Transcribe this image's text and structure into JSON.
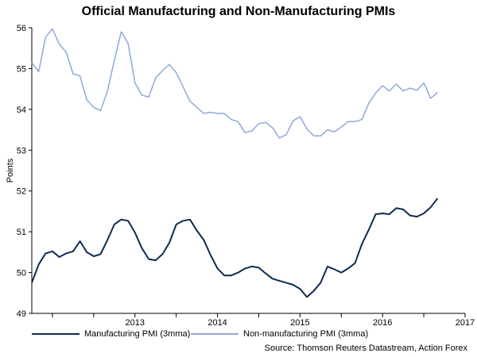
{
  "chart_data": {
    "type": "line",
    "title": "Official Manufacturing and Non-Manufacturing PMIs",
    "ylabel": "Points",
    "xlabel": "",
    "ylim": [
      49,
      56
    ],
    "yticks": [
      49,
      50,
      51,
      52,
      53,
      54,
      55,
      56
    ],
    "xlim": [
      "2012-04",
      "2017-07"
    ],
    "xticks": [
      {
        "label": "2013",
        "x": "2013-07"
      },
      {
        "label": "2014",
        "x": "2014-07"
      },
      {
        "label": "2015",
        "x": "2015-07"
      },
      {
        "label": "2016",
        "x": "2016-07"
      },
      {
        "label": "2017",
        "x": "2017-07"
      }
    ],
    "grid": false,
    "legend_position": "bottom",
    "series": [
      {
        "name": "Manufacturing PMI (3mma)",
        "color": "#0d2a52",
        "points": [
          [
            "2012-04",
            49.75
          ],
          [
            "2012-05",
            50.2
          ],
          [
            "2012-06",
            50.47
          ],
          [
            "2012-07",
            50.52
          ],
          [
            "2012-08",
            50.38
          ],
          [
            "2012-09",
            50.47
          ],
          [
            "2012-10",
            50.52
          ],
          [
            "2012-11",
            50.77
          ],
          [
            "2012-12",
            50.5
          ],
          [
            "2013-01",
            50.4
          ],
          [
            "2013-02",
            50.45
          ],
          [
            "2013-03",
            50.8
          ],
          [
            "2013-04",
            51.18
          ],
          [
            "2013-05",
            51.3
          ],
          [
            "2013-06",
            51.27
          ],
          [
            "2013-07",
            50.98
          ],
          [
            "2013-08",
            50.6
          ],
          [
            "2013-09",
            50.33
          ],
          [
            "2013-10",
            50.3
          ],
          [
            "2013-11",
            50.45
          ],
          [
            "2013-12",
            50.73
          ],
          [
            "2014-01",
            51.18
          ],
          [
            "2014-02",
            51.27
          ],
          [
            "2014-03",
            51.3
          ],
          [
            "2014-04",
            51.03
          ],
          [
            "2014-05",
            50.8
          ],
          [
            "2014-06",
            50.43
          ],
          [
            "2014-07",
            50.1
          ],
          [
            "2014-08",
            49.93
          ],
          [
            "2014-09",
            49.93
          ],
          [
            "2014-10",
            50.0
          ],
          [
            "2014-11",
            50.1
          ],
          [
            "2014-12",
            50.15
          ],
          [
            "2015-01",
            50.12
          ],
          [
            "2015-02",
            49.98
          ],
          [
            "2015-03",
            49.85
          ],
          [
            "2015-04",
            49.8
          ],
          [
            "2015-05",
            49.75
          ],
          [
            "2015-06",
            49.7
          ],
          [
            "2015-07",
            49.6
          ],
          [
            "2015-08",
            49.4
          ],
          [
            "2015-09",
            49.55
          ],
          [
            "2015-10",
            49.75
          ],
          [
            "2015-11",
            50.15
          ],
          [
            "2015-12",
            50.08
          ],
          [
            "2016-01",
            50.0
          ],
          [
            "2016-02",
            50.1
          ],
          [
            "2016-03",
            50.23
          ],
          [
            "2016-04",
            50.7
          ],
          [
            "2016-05",
            51.05
          ],
          [
            "2016-06",
            51.43
          ],
          [
            "2016-07",
            51.45
          ],
          [
            "2016-08",
            51.43
          ],
          [
            "2016-09",
            51.58
          ],
          [
            "2016-10",
            51.55
          ],
          [
            "2016-11",
            51.4
          ],
          [
            "2016-12",
            51.37
          ],
          [
            "2017-01",
            51.45
          ],
          [
            "2017-02",
            51.6
          ],
          [
            "2017-03",
            51.82
          ]
        ]
      },
      {
        "name": "Non-manufacturing PMI (3mma)",
        "color": "#8fa9dc",
        "points": [
          [
            "2012-04",
            55.15
          ],
          [
            "2012-05",
            54.92
          ],
          [
            "2012-06",
            55.77
          ],
          [
            "2012-07",
            55.97
          ],
          [
            "2012-08",
            55.6
          ],
          [
            "2012-09",
            55.4
          ],
          [
            "2012-10",
            54.87
          ],
          [
            "2012-11",
            54.82
          ],
          [
            "2012-12",
            54.23
          ],
          [
            "2013-01",
            54.05
          ],
          [
            "2013-02",
            53.97
          ],
          [
            "2013-03",
            54.45
          ],
          [
            "2013-04",
            55.2
          ],
          [
            "2013-05",
            55.9
          ],
          [
            "2013-06",
            55.62
          ],
          [
            "2013-07",
            54.65
          ],
          [
            "2013-08",
            54.35
          ],
          [
            "2013-09",
            54.3
          ],
          [
            "2013-10",
            54.77
          ],
          [
            "2013-11",
            54.95
          ],
          [
            "2013-12",
            55.1
          ],
          [
            "2014-01",
            54.9
          ],
          [
            "2014-02",
            54.55
          ],
          [
            "2014-03",
            54.2
          ],
          [
            "2014-04",
            54.05
          ],
          [
            "2014-05",
            53.9
          ],
          [
            "2014-06",
            53.93
          ],
          [
            "2014-07",
            53.9
          ],
          [
            "2014-08",
            53.9
          ],
          [
            "2014-09",
            53.75
          ],
          [
            "2014-10",
            53.7
          ],
          [
            "2014-11",
            53.43
          ],
          [
            "2014-12",
            53.47
          ],
          [
            "2015-01",
            53.65
          ],
          [
            "2015-02",
            53.68
          ],
          [
            "2015-03",
            53.55
          ],
          [
            "2015-04",
            53.3
          ],
          [
            "2015-05",
            53.38
          ],
          [
            "2015-06",
            53.72
          ],
          [
            "2015-07",
            53.82
          ],
          [
            "2015-08",
            53.52
          ],
          [
            "2015-09",
            53.35
          ],
          [
            "2015-10",
            53.35
          ],
          [
            "2015-11",
            53.5
          ],
          [
            "2015-12",
            53.45
          ],
          [
            "2016-01",
            53.57
          ],
          [
            "2016-02",
            53.7
          ],
          [
            "2016-03",
            53.7
          ],
          [
            "2016-04",
            53.75
          ],
          [
            "2016-05",
            54.15
          ],
          [
            "2016-06",
            54.4
          ],
          [
            "2016-07",
            54.58
          ],
          [
            "2016-08",
            54.45
          ],
          [
            "2016-09",
            54.62
          ],
          [
            "2016-10",
            54.45
          ],
          [
            "2016-11",
            54.52
          ],
          [
            "2016-12",
            54.47
          ],
          [
            "2017-01",
            54.65
          ],
          [
            "2017-02",
            54.27
          ],
          [
            "2017-03",
            54.42
          ]
        ]
      }
    ],
    "source": "Source: Thomson Reuters Datastream, Action Forex"
  }
}
